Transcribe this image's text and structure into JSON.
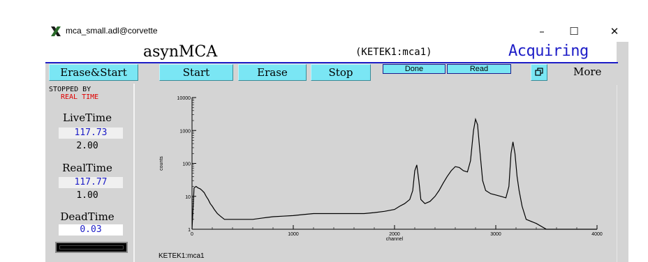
{
  "window": {
    "title": "mca_small.adl@corvette",
    "controls": {
      "minimize": "–",
      "maximize": "☐",
      "close": "✕"
    }
  },
  "header": {
    "app_name": "asynMCA",
    "pv_name": "(KETEK1:mca1)",
    "status": "Acquiring",
    "status_color": "#1c1cc7"
  },
  "toolbar": {
    "erase_start": "Erase&Start",
    "start": "Start",
    "erase": "Erase",
    "stop": "Stop",
    "done": "Done",
    "read": "Read",
    "more_icon": "window-restore-icon",
    "more": "More",
    "button_color": "#7ae6f4"
  },
  "left_panel": {
    "stopped_by_label": "STOPPED BY",
    "stopped_reason": "REAL TIME",
    "livetime": {
      "label": "LiveTime",
      "value": "117.73",
      "preset": "2.00"
    },
    "realtime": {
      "label": "RealTime",
      "value": "117.77",
      "preset": "1.00"
    },
    "deadtime": {
      "label": "DeadTime",
      "value": "0.03"
    }
  },
  "plot": {
    "label": "KETEK1:mca1"
  },
  "chart_data": {
    "type": "line",
    "yscale": "log",
    "xlabel": "channel",
    "ylabel": "counts",
    "xlim": [
      0,
      4000
    ],
    "ylim": [
      1,
      10000
    ],
    "x_ticks": [
      "0",
      "1000",
      "2000",
      "3000",
      "4000"
    ],
    "y_ticks": [
      "1",
      "10",
      "100",
      "1000",
      "10000"
    ],
    "series": [
      {
        "x": [
          0,
          20,
          40,
          60,
          80,
          100,
          120,
          140,
          160,
          180,
          200,
          220,
          250,
          280,
          320,
          400,
          500,
          600,
          700,
          800,
          900,
          1000,
          1100,
          1200,
          1300,
          1400,
          1500,
          1600,
          1700,
          1800,
          1900,
          2000,
          2050,
          2100,
          2150,
          2180,
          2200,
          2220,
          2240,
          2260,
          2300,
          2350,
          2400,
          2440,
          2480,
          2520,
          2560,
          2600,
          2640,
          2680,
          2720,
          2750,
          2780,
          2800,
          2820,
          2840,
          2870,
          2900,
          2950,
          3000,
          3050,
          3100,
          3130,
          3150,
          3170,
          3190,
          3210,
          3230,
          3260,
          3300,
          3400,
          3500,
          3600,
          3700,
          3800,
          4000
        ],
        "y": [
          1,
          18,
          20,
          18,
          17,
          15,
          13,
          10,
          8,
          6,
          5,
          4,
          3,
          2.5,
          2,
          2,
          2,
          2,
          2.2,
          2.4,
          2.5,
          2.6,
          2.8,
          3,
          3,
          3,
          3,
          3,
          3,
          3.2,
          3.5,
          4,
          5,
          6,
          8,
          15,
          60,
          90,
          30,
          8,
          6,
          7,
          10,
          15,
          25,
          40,
          60,
          80,
          75,
          60,
          55,
          120,
          1000,
          2200,
          1500,
          300,
          30,
          15,
          12,
          11,
          10,
          9,
          20,
          200,
          450,
          200,
          40,
          15,
          5,
          2,
          1.5,
          1,
          1,
          1,
          1,
          1
        ]
      }
    ],
    "grid": false,
    "line_color": "#000000",
    "plot_bg": "#d4d4d4"
  }
}
